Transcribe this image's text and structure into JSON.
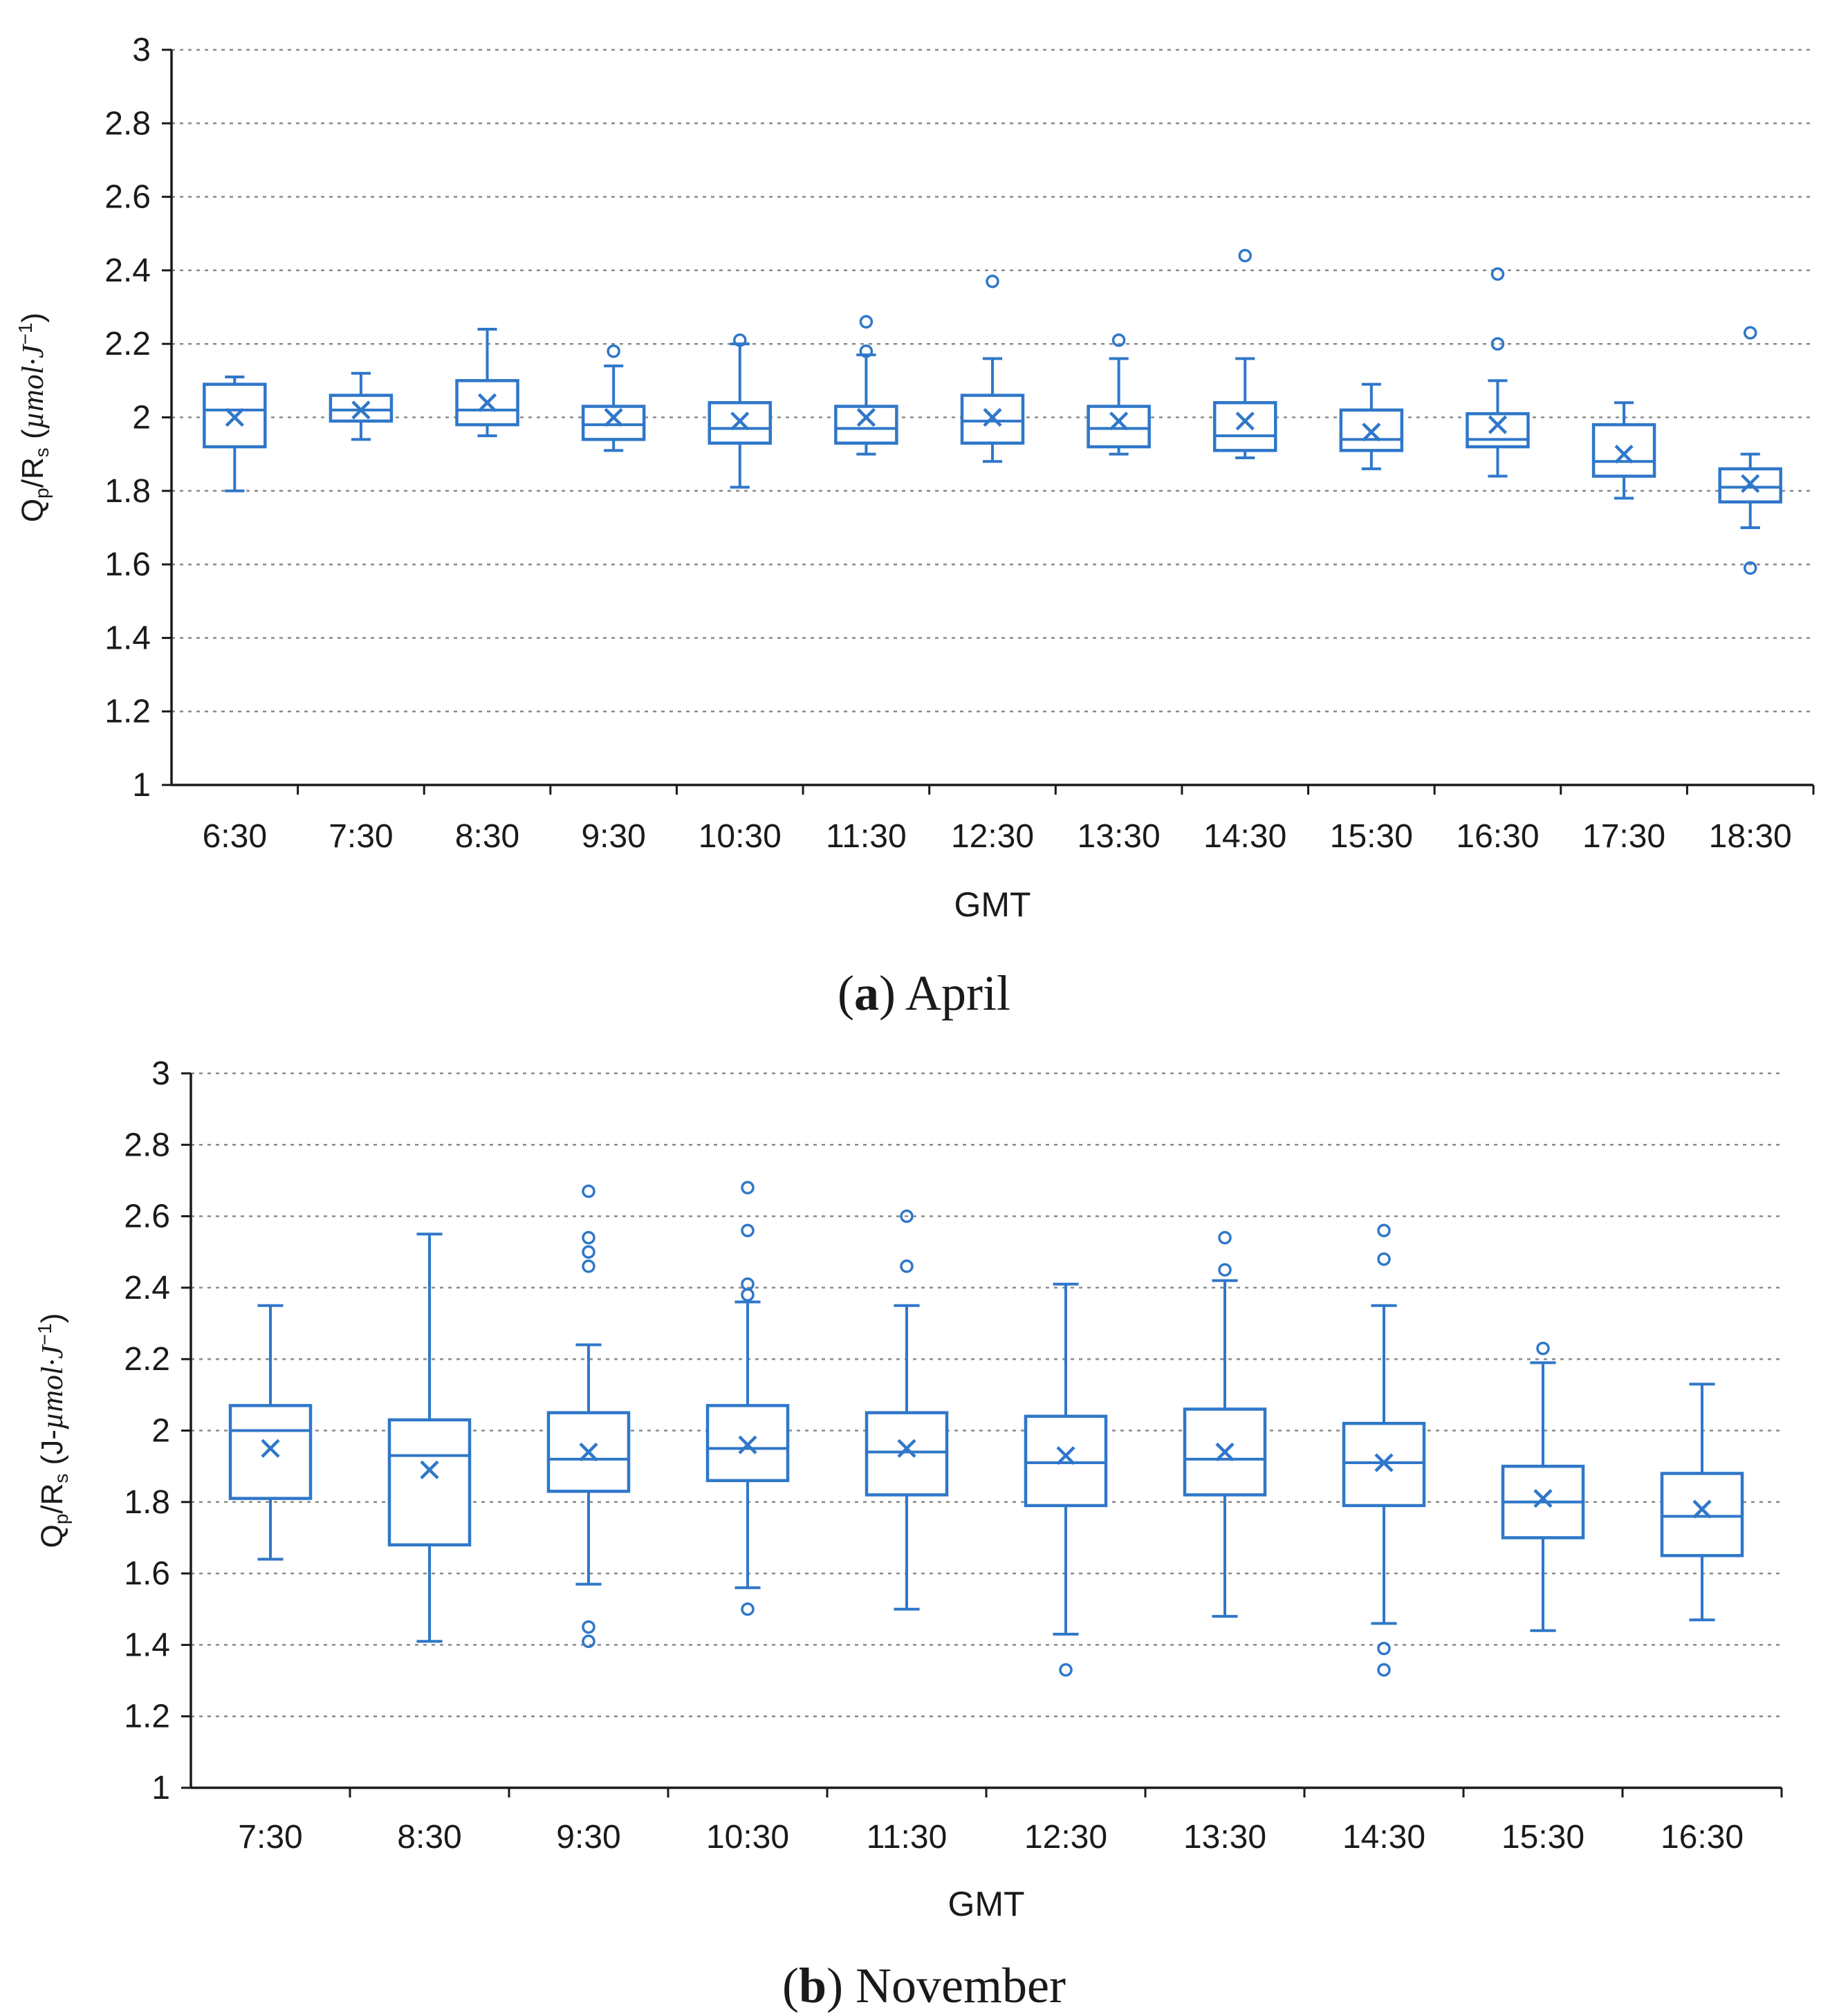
{
  "colors": {
    "box": "#2f77c9",
    "grid": "#8a8a8a",
    "axis": "#1a1a1a"
  },
  "chart_data": [
    {
      "type": "box",
      "caption": {
        "letter": "a",
        "text": ") April",
        "open": "("
      },
      "xlabel": "GMT",
      "ylabel": {
        "q": "Q",
        "q_sub": "p",
        "r": "/R",
        "r_sub": "s",
        "unit_pre": "(",
        "unit_italic": "µmol·J",
        "unit_sup": "−1",
        "unit_post": ")"
      },
      "ylim": [
        1,
        3
      ],
      "yticks": [
        "1",
        "1.2",
        "1.4",
        "1.6",
        "1.8",
        "2",
        "2.2",
        "2.4",
        "2.6",
        "2.8",
        "3"
      ],
      "grid": true,
      "categories": [
        "6:30",
        "7:30",
        "8:30",
        "9:30",
        "10:30",
        "11:30",
        "12:30",
        "13:30",
        "14:30",
        "15:30",
        "16:30",
        "17:30",
        "18:30"
      ],
      "boxes": [
        {
          "min": 1.8,
          "q1": 1.92,
          "median": 2.02,
          "q3": 2.09,
          "max": 2.11,
          "mean": 2.0,
          "outliers": []
        },
        {
          "min": 1.94,
          "q1": 1.99,
          "median": 2.02,
          "q3": 2.06,
          "max": 2.12,
          "mean": 2.02,
          "outliers": []
        },
        {
          "min": 1.95,
          "q1": 1.98,
          "median": 2.02,
          "q3": 2.1,
          "max": 2.24,
          "mean": 2.04,
          "outliers": []
        },
        {
          "min": 1.91,
          "q1": 1.94,
          "median": 1.98,
          "q3": 2.03,
          "max": 2.14,
          "mean": 2.0,
          "outliers": [
            2.18
          ]
        },
        {
          "min": 1.81,
          "q1": 1.93,
          "median": 1.97,
          "q3": 2.04,
          "max": 2.2,
          "mean": 1.99,
          "outliers": [
            2.21
          ]
        },
        {
          "min": 1.9,
          "q1": 1.93,
          "median": 1.97,
          "q3": 2.03,
          "max": 2.17,
          "mean": 2.0,
          "outliers": [
            2.18,
            2.26
          ]
        },
        {
          "min": 1.88,
          "q1": 1.93,
          "median": 1.99,
          "q3": 2.06,
          "max": 2.16,
          "mean": 2.0,
          "outliers": [
            2.37
          ]
        },
        {
          "min": 1.9,
          "q1": 1.92,
          "median": 1.97,
          "q3": 2.03,
          "max": 2.16,
          "mean": 1.99,
          "outliers": [
            2.21
          ]
        },
        {
          "min": 1.89,
          "q1": 1.91,
          "median": 1.95,
          "q3": 2.04,
          "max": 2.16,
          "mean": 1.99,
          "outliers": [
            2.44
          ]
        },
        {
          "min": 1.86,
          "q1": 1.91,
          "median": 1.94,
          "q3": 2.02,
          "max": 2.09,
          "mean": 1.96,
          "outliers": []
        },
        {
          "min": 1.84,
          "q1": 1.92,
          "median": 1.94,
          "q3": 2.01,
          "max": 2.1,
          "mean": 1.98,
          "outliers": [
            2.2,
            2.39
          ]
        },
        {
          "min": 1.78,
          "q1": 1.84,
          "median": 1.88,
          "q3": 1.98,
          "max": 2.04,
          "mean": 1.9,
          "outliers": []
        },
        {
          "min": 1.7,
          "q1": 1.77,
          "median": 1.81,
          "q3": 1.86,
          "max": 1.9,
          "mean": 1.82,
          "outliers": [
            1.59,
            2.23
          ]
        }
      ]
    },
    {
      "type": "box",
      "caption": {
        "letter": "b",
        "text": ") November",
        "open": "("
      },
      "xlabel": "GMT",
      "ylabel": {
        "q": "Q",
        "q_sub": "p",
        "r": "/R",
        "r_sub": "s",
        "unit_pre": "(J-",
        "unit_italic": "µmol·J",
        "unit_sup": "−1",
        "unit_post": ")"
      },
      "ylim": [
        1,
        3
      ],
      "yticks": [
        "1",
        "1.2",
        "1.4",
        "1.6",
        "1.8",
        "2",
        "2.2",
        "2.4",
        "2.6",
        "2.8",
        "3"
      ],
      "grid": true,
      "categories": [
        "7:30",
        "8:30",
        "9:30",
        "10:30",
        "11:30",
        "12:30",
        "13:30",
        "14:30",
        "15:30",
        "16:30"
      ],
      "boxes": [
        {
          "min": 1.64,
          "q1": 1.81,
          "median": 2.0,
          "q3": 2.07,
          "max": 2.35,
          "mean": 1.95,
          "outliers": []
        },
        {
          "min": 1.41,
          "q1": 1.68,
          "median": 1.93,
          "q3": 2.03,
          "max": 2.55,
          "mean": 1.89,
          "outliers": []
        },
        {
          "min": 1.57,
          "q1": 1.83,
          "median": 1.92,
          "q3": 2.05,
          "max": 2.24,
          "mean": 1.94,
          "outliers": [
            1.41,
            1.45,
            2.46,
            2.5,
            2.54,
            2.67
          ]
        },
        {
          "min": 1.56,
          "q1": 1.86,
          "median": 1.95,
          "q3": 2.07,
          "max": 2.36,
          "mean": 1.96,
          "outliers": [
            1.5,
            2.38,
            2.41,
            2.56,
            2.68
          ]
        },
        {
          "min": 1.5,
          "q1": 1.82,
          "median": 1.94,
          "q3": 2.05,
          "max": 2.35,
          "mean": 1.95,
          "outliers": [
            2.46,
            2.6
          ]
        },
        {
          "min": 1.43,
          "q1": 1.79,
          "median": 1.91,
          "q3": 2.04,
          "max": 2.41,
          "mean": 1.93,
          "outliers": [
            1.33
          ]
        },
        {
          "min": 1.48,
          "q1": 1.82,
          "median": 1.92,
          "q3": 2.06,
          "max": 2.42,
          "mean": 1.94,
          "outliers": [
            2.45,
            2.54
          ]
        },
        {
          "min": 1.46,
          "q1": 1.79,
          "median": 1.91,
          "q3": 2.02,
          "max": 2.35,
          "mean": 1.91,
          "outliers": [
            1.33,
            1.39,
            2.48,
            2.56
          ]
        },
        {
          "min": 1.44,
          "q1": 1.7,
          "median": 1.8,
          "q3": 1.9,
          "max": 2.19,
          "mean": 1.81,
          "outliers": [
            2.23
          ]
        },
        {
          "min": 1.47,
          "q1": 1.65,
          "median": 1.76,
          "q3": 1.88,
          "max": 2.13,
          "mean": 1.78,
          "outliers": []
        }
      ]
    }
  ]
}
